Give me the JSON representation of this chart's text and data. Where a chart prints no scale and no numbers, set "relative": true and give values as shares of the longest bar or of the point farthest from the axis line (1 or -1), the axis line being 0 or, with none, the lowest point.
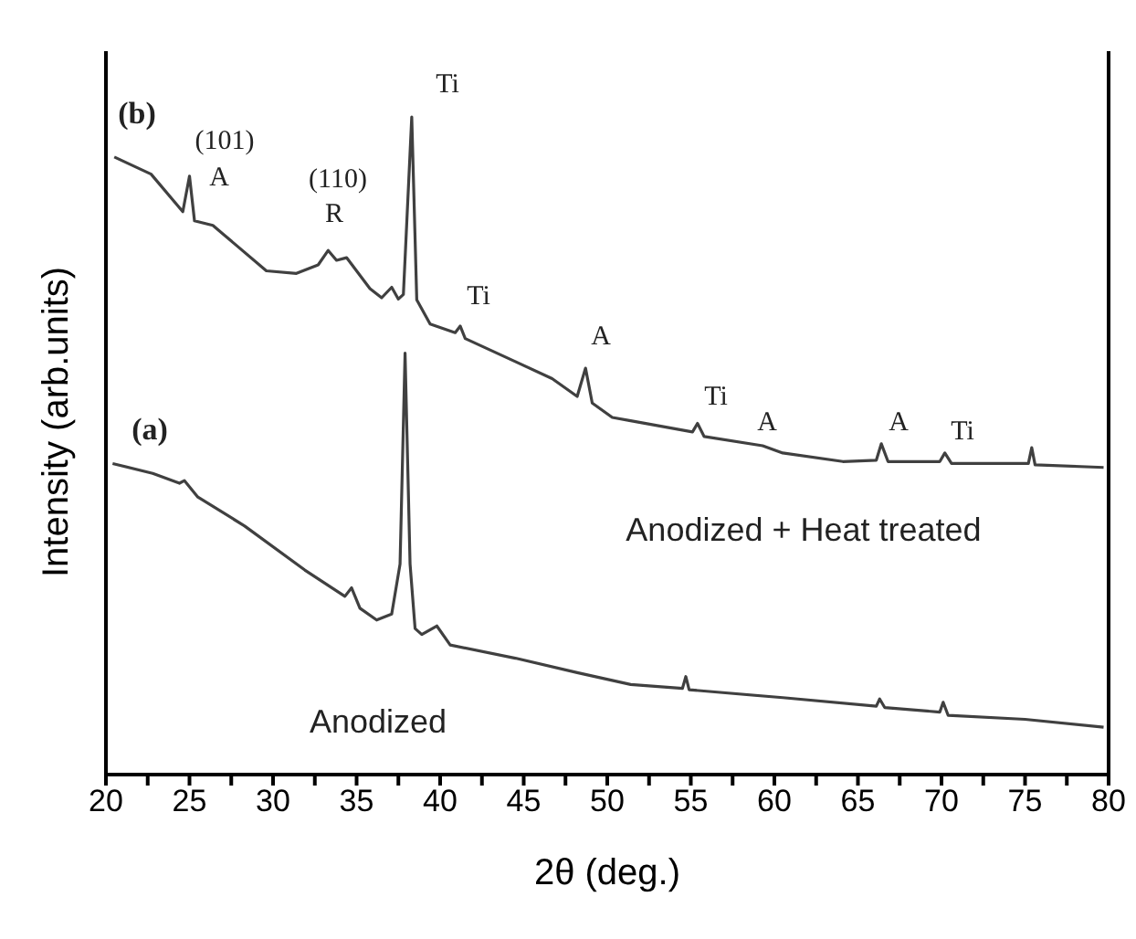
{
  "chart_data": {
    "type": "line",
    "relative": true,
    "xlabel": "2θ (deg.)",
    "ylabel": "Intensity (arb.units)",
    "xlim": [
      20,
      80
    ],
    "xticks": [
      20,
      {
        "value": 22.5,
        "label": null
      },
      25,
      {
        "value": 27.5,
        "label": null
      },
      30,
      {
        "value": 32.5,
        "label": null
      },
      35,
      {
        "value": 37.5,
        "label": null
      },
      40,
      {
        "value": 42.5,
        "label": null
      },
      45,
      {
        "value": 47.5,
        "label": null
      },
      50,
      {
        "value": 52.5,
        "label": null
      },
      55,
      {
        "value": 57.5,
        "label": null
      },
      60,
      {
        "value": 62.5,
        "label": null
      },
      65,
      {
        "value": 67.5,
        "label": null
      },
      70,
      {
        "value": 72.5,
        "label": null
      },
      75,
      {
        "value": 77.5,
        "label": null
      },
      80
    ],
    "grid": false,
    "marker": "none",
    "line_style": "solid",
    "series": [
      {
        "color": "#404040",
        "x": [
          20.5,
          22.7,
          24.6,
          25.0,
          25.3,
          26.4,
          29.6,
          31.4,
          32.7,
          33.3,
          33.8,
          34.4,
          35.8,
          36.5,
          37.1,
          37.5,
          37.8,
          38.3,
          38.6,
          39.4,
          40.9,
          41.2,
          41.5,
          44.5,
          46.7,
          48.2,
          48.7,
          49.1,
          50.3,
          51.4,
          55.1,
          55.4,
          55.8,
          59.3,
          60.5,
          64.1,
          66.1,
          66.4,
          66.8,
          69.9,
          70.2,
          70.6,
          75.2,
          75.4,
          75.6,
          79.7
        ],
        "values": [
          0.939,
          0.913,
          0.856,
          0.91,
          0.842,
          0.835,
          0.766,
          0.762,
          0.775,
          0.797,
          0.782,
          0.786,
          0.739,
          0.725,
          0.741,
          0.723,
          0.73,
          1.0,
          0.722,
          0.685,
          0.672,
          0.682,
          0.663,
          0.628,
          0.602,
          0.575,
          0.618,
          0.565,
          0.543,
          0.538,
          0.521,
          0.534,
          0.514,
          0.5,
          0.489,
          0.476,
          0.478,
          0.503,
          0.476,
          0.476,
          0.489,
          0.473,
          0.473,
          0.497,
          0.471,
          0.467
        ]
      },
      {
        "color": "#404040",
        "x": [
          20.4,
          22.8,
          24.4,
          24.7,
          25.5,
          28.3,
          31.9,
          34.3,
          34.7,
          35.2,
          36.2,
          37.1,
          37.6,
          37.9,
          38.2,
          38.5,
          38.9,
          39.8,
          40.6,
          44.5,
          48.2,
          51.4,
          54.5,
          54.7,
          54.9,
          60.5,
          66.1,
          66.3,
          66.6,
          69.9,
          70.1,
          70.4,
          75.0,
          79.7
        ],
        "values": [
          0.473,
          0.458,
          0.443,
          0.447,
          0.422,
          0.378,
          0.311,
          0.271,
          0.284,
          0.253,
          0.235,
          0.244,
          0.32,
          0.641,
          0.32,
          0.222,
          0.213,
          0.226,
          0.197,
          0.177,
          0.155,
          0.137,
          0.131,
          0.149,
          0.129,
          0.117,
          0.104,
          0.115,
          0.102,
          0.095,
          0.11,
          0.09,
          0.084,
          0.072
        ]
      }
    ],
    "annotations": [
      "(b)",
      "(101)",
      "A",
      "(110)",
      "R",
      "Ti",
      "Ti",
      "A",
      "Ti",
      "A",
      "A",
      "Ti",
      "(a)",
      "Anodized + Heat treated",
      "Anodized"
    ]
  }
}
